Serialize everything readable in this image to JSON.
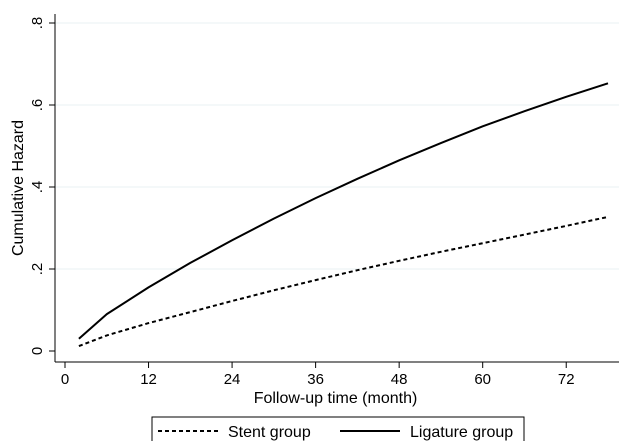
{
  "chart_data": {
    "type": "line",
    "title": "",
    "xlabel": "Follow-up time (month)",
    "ylabel": "Cumulative Hazard",
    "xlim": [
      0,
      78
    ],
    "ylim": [
      0,
      0.8
    ],
    "x_ticks": [
      0,
      12,
      24,
      36,
      48,
      60,
      72
    ],
    "x_tick_labels": [
      "0",
      "12",
      "24",
      "36",
      "48",
      "60",
      "72"
    ],
    "y_ticks": [
      0,
      0.2,
      0.4,
      0.6,
      0.8
    ],
    "y_tick_labels": [
      "0",
      ".2",
      ".4",
      ".6",
      ".8"
    ],
    "grid": "horizontal",
    "legend_position": "bottom",
    "series": [
      {
        "name": "Stent group",
        "style": "dashed",
        "color": "#000000",
        "x": [
          2,
          6,
          12,
          18,
          24,
          30,
          36,
          42,
          48,
          54,
          60,
          66,
          72,
          78
        ],
        "y": [
          0.012,
          0.038,
          0.068,
          0.095,
          0.122,
          0.148,
          0.173,
          0.197,
          0.22,
          0.242,
          0.263,
          0.284,
          0.305,
          0.327
        ]
      },
      {
        "name": "Ligature group",
        "style": "solid",
        "color": "#000000",
        "x": [
          2,
          6,
          12,
          18,
          24,
          30,
          36,
          42,
          48,
          54,
          60,
          66,
          72,
          78
        ],
        "y": [
          0.03,
          0.09,
          0.155,
          0.215,
          0.27,
          0.323,
          0.373,
          0.42,
          0.465,
          0.507,
          0.548,
          0.585,
          0.62,
          0.653
        ]
      }
    ]
  }
}
